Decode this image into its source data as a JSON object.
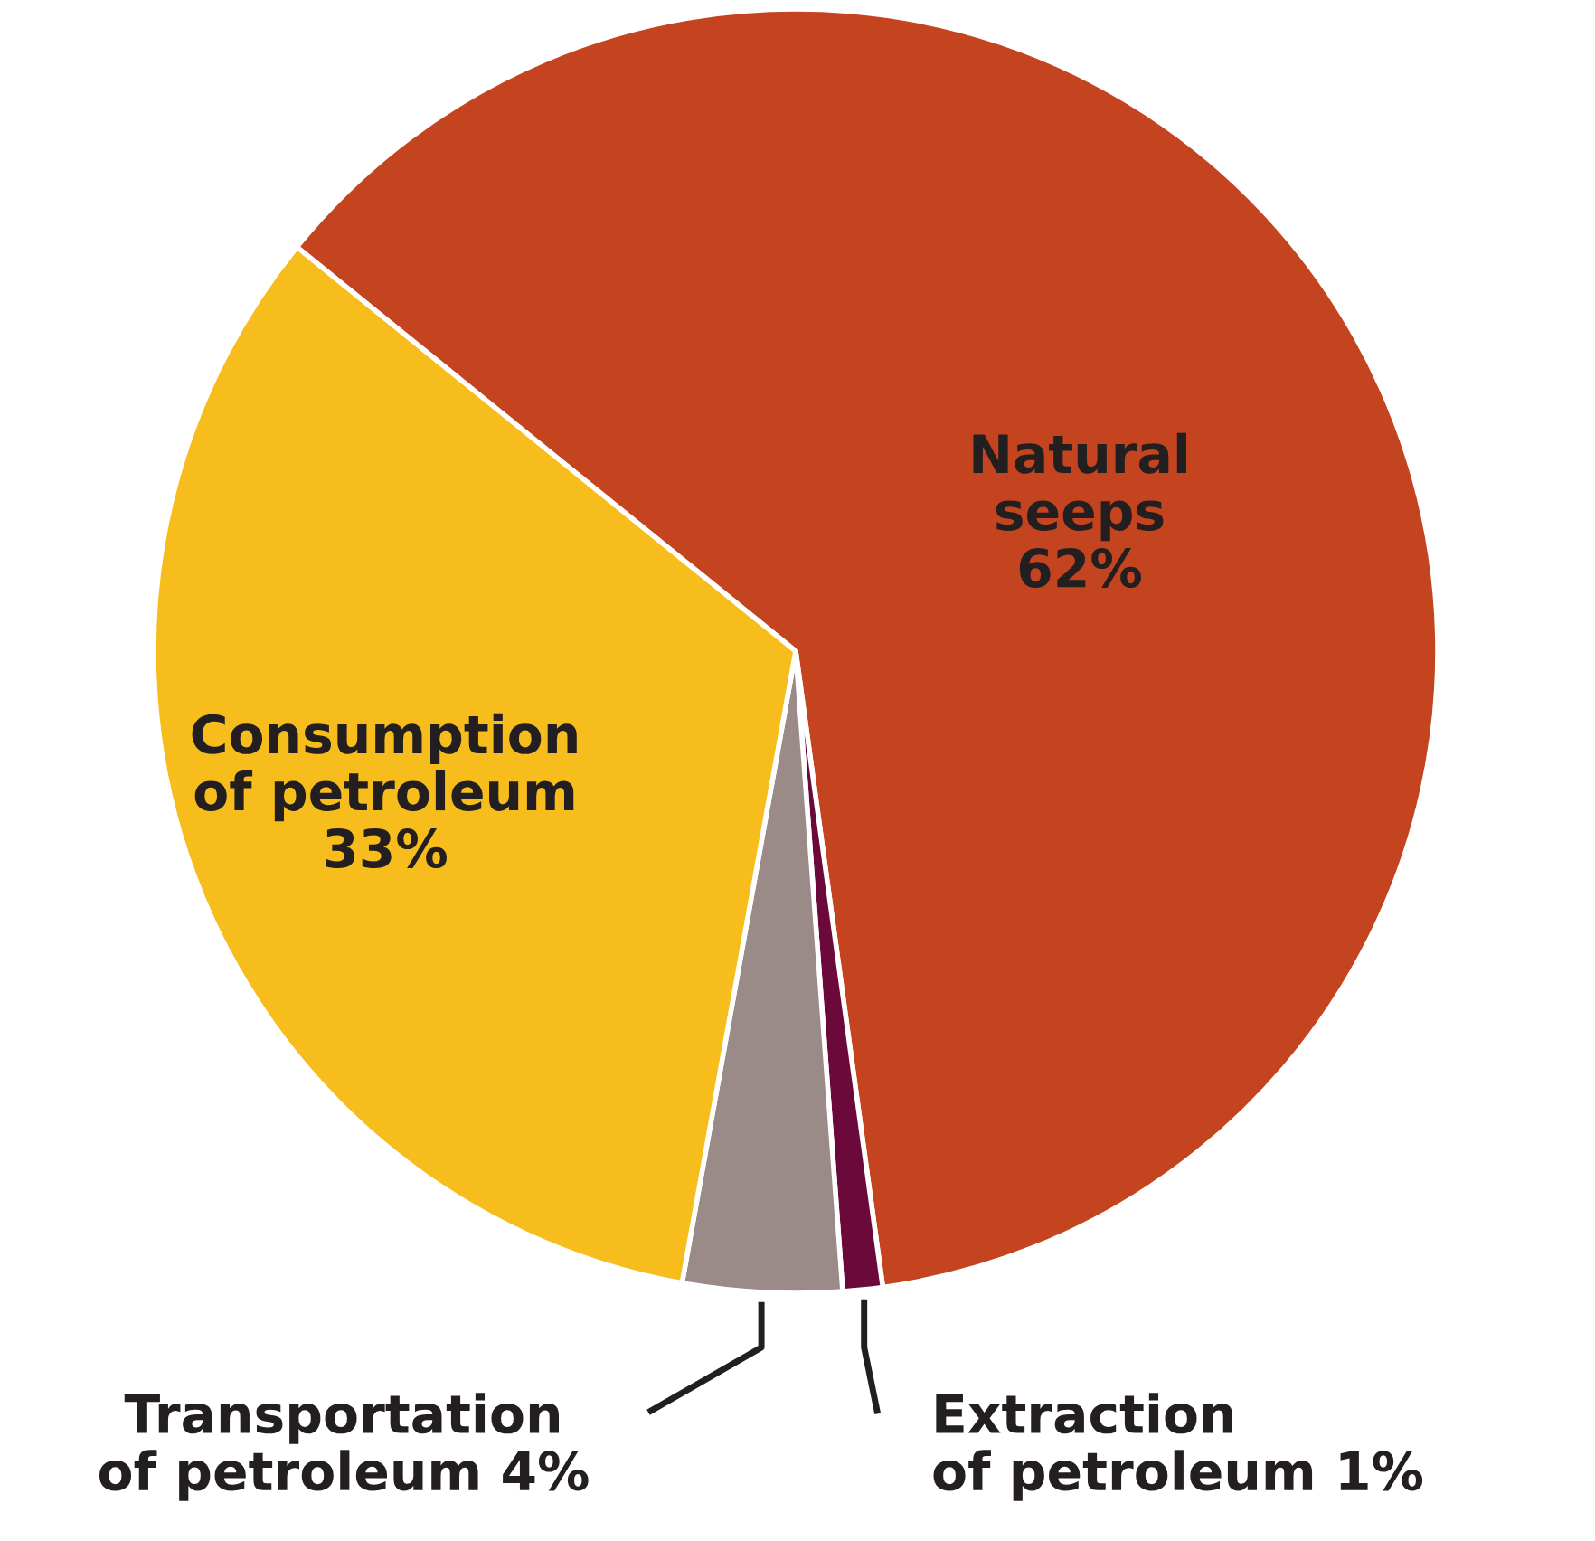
{
  "chart_data": {
    "type": "pie",
    "categories": [
      "Natural\nseeps",
      "Extraction\nof petroleum",
      "Transportation\nof petroleum",
      "Consumption\nof petroleum"
    ],
    "values": [
      62,
      1,
      4,
      33
    ],
    "colors": [
      "#c4441f",
      "#6b0a3a",
      "#9a8a88",
      "#f7bd1c"
    ],
    "value_labels": [
      "62%",
      "1%",
      "4%",
      "33%"
    ]
  }
}
